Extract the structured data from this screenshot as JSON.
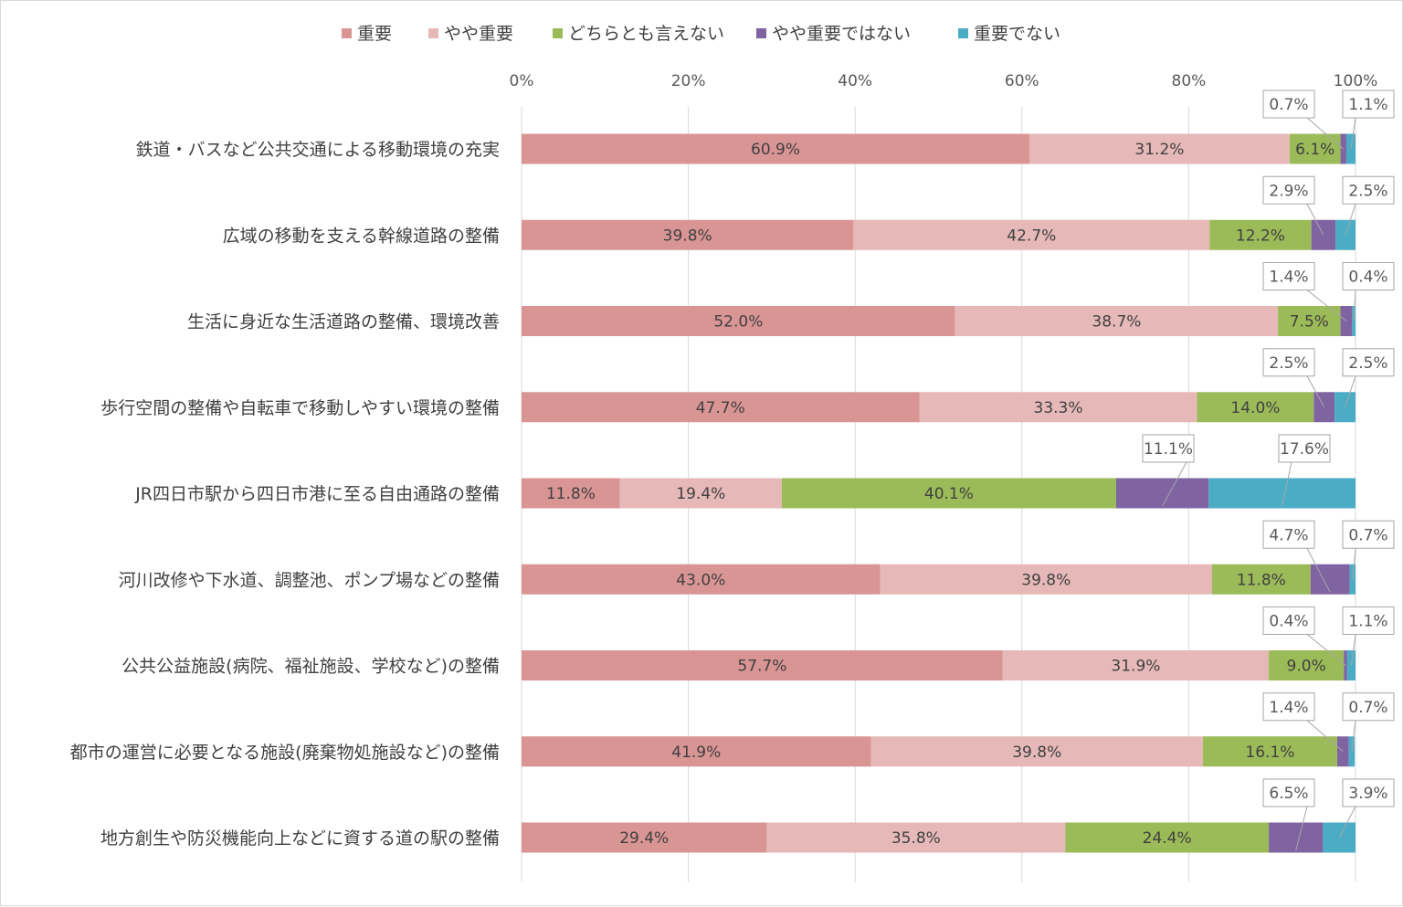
{
  "chart_data": {
    "type": "bar",
    "orientation": "horizontal",
    "stacked": "percent",
    "title": "",
    "xlabel": "",
    "ylabel": "",
    "xlim": [
      0,
      100
    ],
    "x_ticks": [
      "0%",
      "20%",
      "40%",
      "60%",
      "80%",
      "100%"
    ],
    "x_tick_values": [
      0,
      20,
      40,
      60,
      80,
      100
    ],
    "grid": "vertical",
    "legend_position": "top",
    "axis_position": "top",
    "categories": [
      "鉄道・バスなど公共交通による移動環境の充実",
      "広域の移動を支える幹線道路の整備",
      "生活に身近な生活道路の整備、環境改善",
      "歩行空間の整備や自転車で移動しやすい環境の整備",
      "JR四日市駅から四日市港に至る自由通路の整備",
      "河川改修や下水道、調整池、ポンプ場などの整備",
      "公共公益施設(病院、福祉施設、学校など)の整備",
      "都市の運営に必要となる施設(廃棄物処施設など)の整備",
      "地方創生や防災機能向上などに資する道の駅の整備"
    ],
    "series": [
      {
        "name": "重要",
        "color": "#d99594",
        "values": [
          60.9,
          39.8,
          52.0,
          47.7,
          11.8,
          43.0,
          57.7,
          41.9,
          29.4
        ]
      },
      {
        "name": "やや重要",
        "color": "#e6b9b8",
        "values": [
          31.2,
          42.7,
          38.7,
          33.3,
          19.4,
          39.8,
          31.9,
          39.8,
          35.8
        ]
      },
      {
        "name": "どちらとも言えない",
        "color": "#9bbb59",
        "values": [
          6.1,
          12.2,
          7.5,
          14.0,
          40.1,
          11.8,
          9.0,
          16.1,
          24.4
        ]
      },
      {
        "name": "やや重要ではない",
        "color": "#8064a2",
        "values": [
          0.7,
          2.9,
          1.4,
          2.5,
          11.1,
          4.7,
          0.4,
          1.4,
          6.5
        ]
      },
      {
        "name": "重要でない",
        "color": "#4bacc6",
        "values": [
          1.1,
          2.5,
          0.4,
          2.5,
          17.6,
          0.7,
          1.1,
          0.7,
          3.9
        ]
      }
    ],
    "labels": [
      [
        "60.9%",
        "31.2%",
        "6.1%",
        "0.7%",
        "1.1%"
      ],
      [
        "39.8%",
        "42.7%",
        "12.2%",
        "2.9%",
        "2.5%"
      ],
      [
        "52.0%",
        "38.7%",
        "7.5%",
        "1.4%",
        "0.4%"
      ],
      [
        "47.7%",
        "33.3%",
        "14.0%",
        "2.5%",
        "2.5%"
      ],
      [
        "11.8%",
        "19.4%",
        "40.1%",
        "11.1%",
        "17.6%"
      ],
      [
        "43.0%",
        "39.8%",
        "11.8%",
        "4.7%",
        "0.7%"
      ],
      [
        "57.7%",
        "31.9%",
        "9.0%",
        "0.4%",
        "1.1%"
      ],
      [
        "41.9%",
        "39.8%",
        "16.1%",
        "1.4%",
        "0.7%"
      ],
      [
        "29.4%",
        "35.8%",
        "24.4%",
        "6.5%",
        "3.9%"
      ]
    ]
  }
}
